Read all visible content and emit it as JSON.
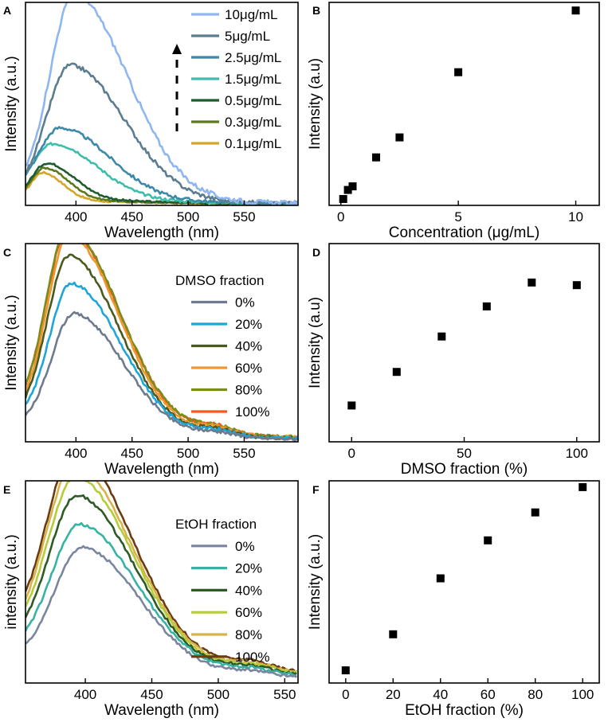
{
  "chart_data": [
    {
      "panel": "A",
      "type": "line",
      "xlabel": "Wavelength (nm)",
      "ylabel": "Intensity (a.u.)",
      "xlim": [
        355,
        598
      ],
      "ylim": [
        0,
        1
      ],
      "xticks": [
        400,
        450,
        500,
        550
      ],
      "legend_title": "",
      "series": [
        {
          "name": "10μg/mL",
          "color": "#8fb6f0",
          "peak": 398,
          "peakI": 1.0,
          "w1": 30,
          "w2": 68,
          "b0": 0.06,
          "noise": 0.012
        },
        {
          "name": "5μg/mL",
          "color": "#5b7d8f",
          "peak": 395,
          "peakI": 0.66,
          "w1": 30,
          "w2": 68,
          "b0": 0.05,
          "noise": 0.01
        },
        {
          "name": "2.5μg/mL",
          "color": "#3f89a8",
          "peak": 386,
          "peakI": 0.35,
          "w1": 28,
          "w2": 62,
          "b0": 0.05,
          "noise": 0.008
        },
        {
          "name": "1.5μg/mL",
          "color": "#3ebdac",
          "peak": 380,
          "peakI": 0.27,
          "w1": 26,
          "w2": 55,
          "b0": 0.05,
          "noise": 0.007
        },
        {
          "name": "0.5μg/mL",
          "color": "#1e5c30",
          "peak": 374,
          "peakI": 0.18,
          "w1": 18,
          "w2": 35,
          "b0": 0.04,
          "noise": 0.005
        },
        {
          "name": "0.3μg/mL",
          "color": "#5a7a1c",
          "peak": 372,
          "peakI": 0.16,
          "w1": 16,
          "w2": 30,
          "b0": 0.035,
          "noise": 0.004
        },
        {
          "name": "0.1μg/mL",
          "color": "#d6a62b",
          "peak": 370,
          "peakI": 0.14,
          "w1": 14,
          "w2": 26,
          "b0": 0.03,
          "noise": 0.004
        }
      ]
    },
    {
      "panel": "B",
      "type": "scatter",
      "xlabel": "Concentration (μg/mL)",
      "ylabel": "Intensity (a.u)",
      "xlim": [
        -0.5,
        11
      ],
      "ylim": [
        0,
        1.12
      ],
      "xticks": [
        0,
        5,
        10
      ],
      "x": [
        0.1,
        0.3,
        0.5,
        1.5,
        2.5,
        5,
        10
      ],
      "y": [
        0.035,
        0.085,
        0.105,
        0.265,
        0.375,
        0.735,
        1.075
      ]
    },
    {
      "panel": "C",
      "type": "line",
      "xlabel": "Wavelength (nm)",
      "ylabel": "Intensity (a.u.)",
      "xlim": [
        355,
        598
      ],
      "ylim": [
        0,
        1
      ],
      "xticks": [
        400,
        450,
        500,
        550
      ],
      "legend_title": "DMSO fraction",
      "series": [
        {
          "name": "0%",
          "color": "#6e7b8e",
          "peak": 398,
          "peakI": 0.6,
          "w1": 28,
          "w2": 62,
          "b0": 0.08,
          "noise": 0.008
        },
        {
          "name": "20%",
          "color": "#1ea6d8",
          "peak": 396,
          "peakI": 0.74,
          "w1": 28,
          "w2": 62,
          "b0": 0.1,
          "noise": 0.008
        },
        {
          "name": "40%",
          "color": "#4a5a1e",
          "peak": 394,
          "peakI": 0.88,
          "w1": 28,
          "w2": 62,
          "b0": 0.1,
          "noise": 0.008
        },
        {
          "name": "60%",
          "color": "#f0962e",
          "peak": 394,
          "peakI": 0.97,
          "w1": 28,
          "w2": 62,
          "b0": 0.12,
          "noise": 0.008
        },
        {
          "name": "80%",
          "color": "#7c8c1a",
          "peak": 393,
          "peakI": 1.0,
          "w1": 28,
          "w2": 64,
          "b0": 0.13,
          "noise": 0.008
        },
        {
          "name": "100%",
          "color": "#f25a1c",
          "peak": 393,
          "peakI": 0.99,
          "w1": 28,
          "w2": 64,
          "b0": 0.13,
          "noise": 0.008
        }
      ]
    },
    {
      "panel": "D",
      "type": "scatter",
      "xlabel": "DMSO fraction (%)",
      "ylabel": "Intensity (a.u)",
      "xlim": [
        -10,
        110
      ],
      "ylim": [
        0,
        1.12
      ],
      "xticks": [
        0,
        50,
        100
      ],
      "x": [
        0,
        20,
        40,
        60,
        80,
        100
      ],
      "y": [
        0.205,
        0.395,
        0.595,
        0.765,
        0.9,
        0.885
      ]
    },
    {
      "panel": "E",
      "type": "line",
      "xlabel": "Wavelength (nm)",
      "ylabel": "intensity (a.u.)",
      "xlim": [
        355,
        560
      ],
      "ylim": [
        0,
        1
      ],
      "xticks": [
        400,
        450,
        500,
        550
      ],
      "legend_title": "EtOH fraction",
      "series": [
        {
          "name": "0%",
          "color": "#7a86a0",
          "peak": 398,
          "peakI": 0.6,
          "w1": 30,
          "w2": 60,
          "b0": 0.12,
          "noise": 0.007
        },
        {
          "name": "20%",
          "color": "#36b3a4",
          "peak": 396,
          "peakI": 0.69,
          "w1": 30,
          "w2": 60,
          "b0": 0.16,
          "noise": 0.007
        },
        {
          "name": "40%",
          "color": "#2e5a26",
          "peak": 394,
          "peakI": 0.82,
          "w1": 30,
          "w2": 60,
          "b0": 0.18,
          "noise": 0.007
        },
        {
          "name": "60%",
          "color": "#b5cc3a",
          "peak": 393,
          "peakI": 0.9,
          "w1": 30,
          "w2": 60,
          "b0": 0.2,
          "noise": 0.007
        },
        {
          "name": "80%",
          "color": "#d9b24a",
          "peak": 392,
          "peakI": 0.95,
          "w1": 30,
          "w2": 60,
          "b0": 0.22,
          "noise": 0.007
        },
        {
          "name": "100%",
          "color": "#6b3c12",
          "peak": 392,
          "peakI": 1.0,
          "w1": 30,
          "w2": 60,
          "b0": 0.24,
          "noise": 0.007
        }
      ]
    },
    {
      "panel": "F",
      "type": "scatter",
      "xlabel": "EtOH fraction (%)",
      "ylabel": "Intensity (a.u.)",
      "xlim": [
        -7,
        107
      ],
      "ylim": [
        0,
        1.12
      ],
      "xticks": [
        0,
        20,
        40,
        60,
        80,
        100
      ],
      "x": [
        0,
        20,
        40,
        60,
        80,
        100
      ],
      "y": [
        0.07,
        0.27,
        0.58,
        0.79,
        0.945,
        1.085
      ]
    }
  ]
}
